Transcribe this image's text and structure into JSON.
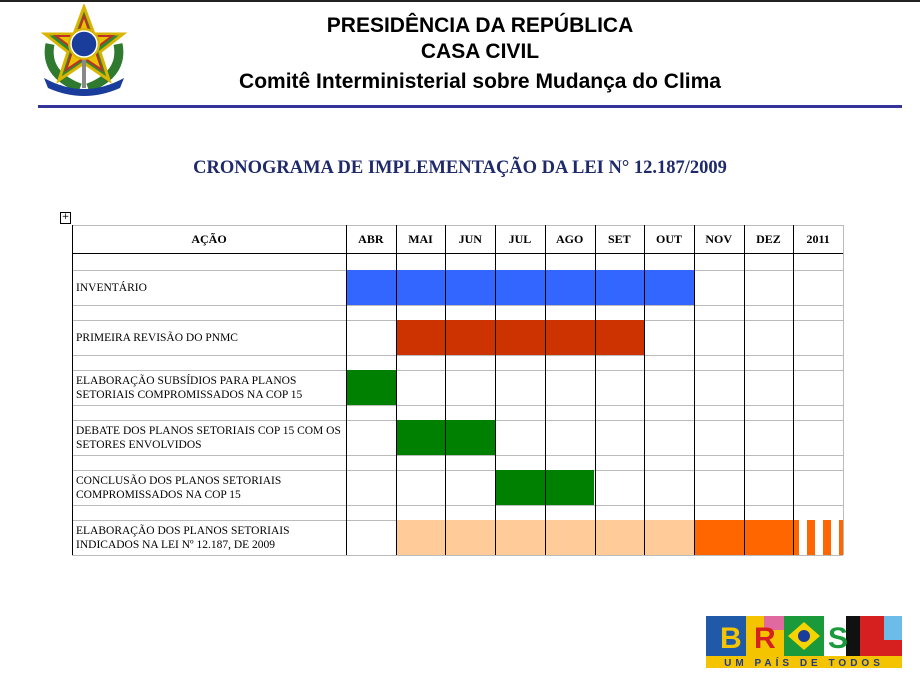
{
  "header": {
    "line1": "PRESIDÊNCIA DA REPÚBLICA",
    "line2": "CASA CIVIL",
    "line3": "Comitê Interministerial sobre Mudança do Clima"
  },
  "title": "CRONOGRAMA DE IMPLEMENTAÇÃO DA LEI N° 12.187/2009",
  "table": {
    "action_header": "AÇÃO",
    "months": [
      "ABR",
      "MAI",
      "JUN",
      "JUL",
      "AGO",
      "SET",
      "OUT",
      "NOV",
      "DEZ",
      "2011"
    ],
    "colors": {
      "blue": "#3366ff",
      "red": "#cc3300",
      "green": "#008000",
      "peach": "#ffcc99",
      "orange": "#ff6600"
    },
    "rows": [
      {
        "label": "INVENTÁRIO",
        "segments": [
          {
            "from": "ABR",
            "to": "OUT",
            "color": "blue"
          }
        ]
      },
      {
        "label": "PRIMEIRA REVISÃO DO PNMC",
        "segments": [
          {
            "from": "MAI",
            "to": "SET",
            "color": "red"
          }
        ]
      },
      {
        "label": "ELABORAÇÃO SUBSÍDIOS PARA PLANOS SETORIAIS COMPROMISSADOS NA COP 15",
        "segments": [
          {
            "from": "ABR",
            "to": "ABR",
            "color": "green"
          }
        ]
      },
      {
        "label": "DEBATE DOS PLANOS SETORIAIS COP 15 COM OS SETORES ENVOLVIDOS",
        "segments": [
          {
            "from": "MAI",
            "to": "JUN",
            "color": "green"
          }
        ]
      },
      {
        "label": "CONCLUSÃO DOS PLANOS SETORIAIS COMPROMISSADOS NA COP 15",
        "segments": [
          {
            "from": "JUL",
            "to": "AGO",
            "color": "green"
          }
        ]
      },
      {
        "label": "ELABORAÇÃO DOS PLANOS SETORIAIS INDICADOS NA LEI Nº 12.187, DE 2009",
        "segments": [
          {
            "from": "MAI",
            "to": "OUT",
            "color": "peach"
          },
          {
            "from": "NOV",
            "to": "DEZ",
            "color": "orange"
          },
          {
            "from": "2011",
            "to": "2011",
            "color": "orange",
            "pattern": "striped"
          }
        ]
      }
    ]
  },
  "logo": {
    "text": "BRASIL",
    "tagline": "UM PAÍS DE TODOS"
  }
}
